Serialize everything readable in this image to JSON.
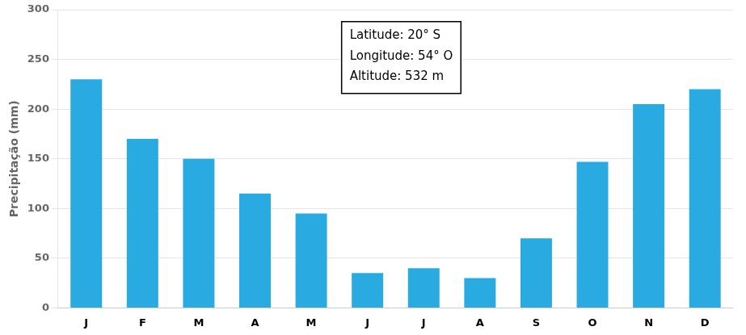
{
  "chart_data": {
    "type": "bar",
    "categories": [
      "J",
      "F",
      "M",
      "A",
      "M",
      "J",
      "J",
      "A",
      "S",
      "O",
      "N",
      "D"
    ],
    "values": [
      230,
      170,
      150,
      115,
      95,
      35,
      40,
      30,
      70,
      147,
      205,
      220
    ],
    "color": "#29ABE2",
    "ylabel": "Precipitação (mm)",
    "annotation": "Latitude: 20° S\nLongitude: 54° O\nAltitude: 532 m",
    "ylim": [
      0,
      300
    ],
    "yticks": [
      0,
      50,
      100,
      150,
      200,
      250,
      300
    ],
    "grid": true
  }
}
